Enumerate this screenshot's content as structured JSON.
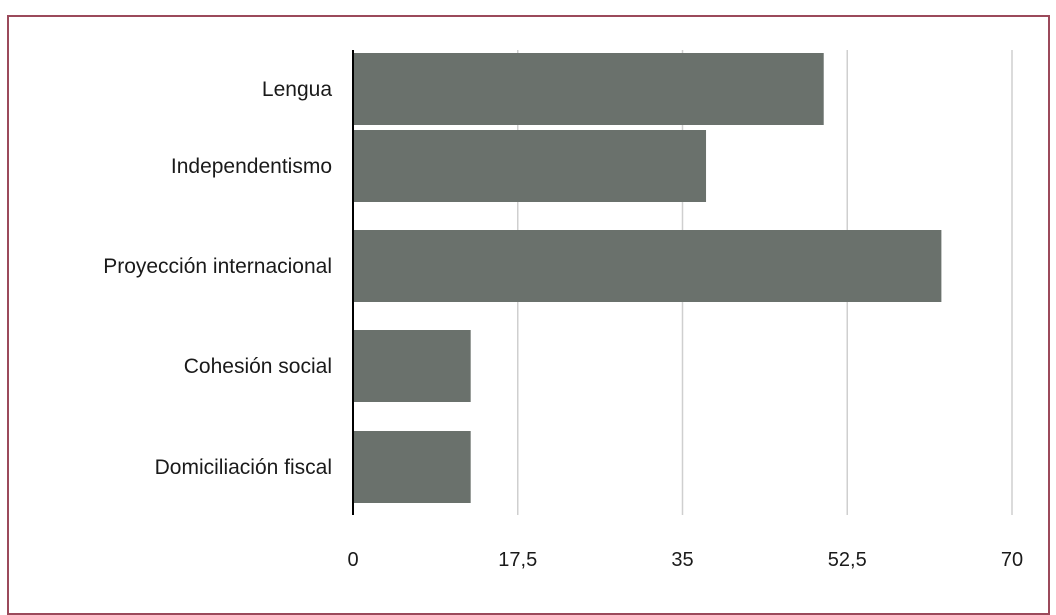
{
  "colors": {
    "frame": "#9b4a5b",
    "bar": "#6a716c",
    "grid": "#cfcfcf",
    "axis": "#000000"
  },
  "chart_data": {
    "type": "bar",
    "orientation": "horizontal",
    "categories": [
      "Lengua",
      "Independentismo",
      "Proyección internacional",
      "Cohesión social",
      "Domiciliación fiscal"
    ],
    "values": [
      50,
      37.5,
      62.5,
      12.5,
      12.5
    ],
    "xlim": [
      0,
      70
    ],
    "xticks": [
      0,
      17.5,
      35,
      52.5,
      70
    ],
    "xtick_labels": [
      "0",
      "17,5",
      "35",
      "52,5",
      "70"
    ],
    "grid": "vertical",
    "legend": "none",
    "title": "",
    "xlabel": "",
    "ylabel": ""
  }
}
